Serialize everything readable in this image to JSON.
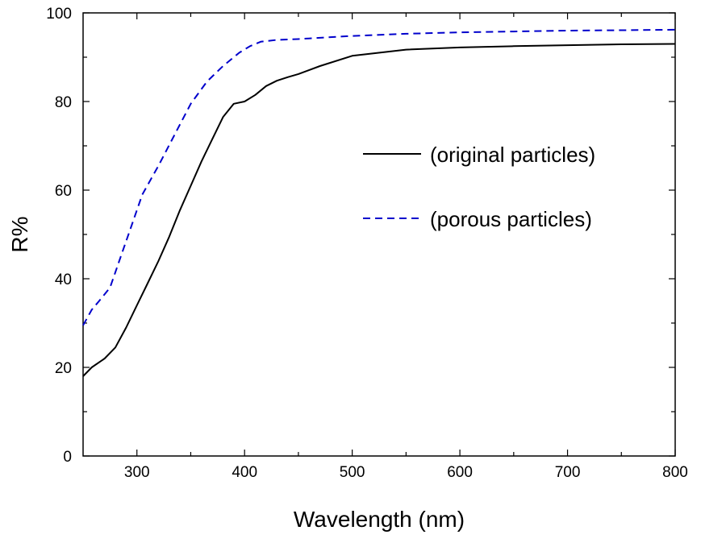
{
  "chart_data": {
    "type": "line",
    "xlabel": "Wavelength (nm)",
    "ylabel": "R%",
    "xlim": [
      250,
      800
    ],
    "ylim": [
      0,
      100
    ],
    "xticks": [
      300,
      400,
      500,
      600,
      700,
      800
    ],
    "xtick_labels": [
      "300",
      "400",
      "500",
      "600",
      "700",
      "800"
    ],
    "yticks": [
      0,
      20,
      40,
      60,
      80,
      100
    ],
    "ytick_labels": [
      "0",
      "20",
      "40",
      "60",
      "80",
      "100"
    ],
    "grid": false,
    "legend_position": "center-right",
    "series": [
      {
        "name": "(original particles)",
        "color": "#000000",
        "dash": "solid",
        "x": [
          250,
          258,
          270,
          280,
          290,
          300,
          310,
          320,
          330,
          340,
          350,
          360,
          370,
          380,
          390,
          400,
          410,
          420,
          430,
          440,
          450,
          470,
          500,
          550,
          600,
          650,
          700,
          750,
          800
        ],
        "y": [
          18,
          20,
          22,
          24.5,
          29,
          34,
          39,
          44,
          49.5,
          55.5,
          61,
          66.5,
          71.5,
          76.5,
          79.5,
          80,
          81.5,
          83.5,
          84.7,
          85.5,
          86.2,
          88,
          90.3,
          91.7,
          92.2,
          92.5,
          92.7,
          92.9,
          93
        ]
      },
      {
        "name": "(porous particles)",
        "color": "#0000cc",
        "dash": "dashed",
        "x": [
          250,
          258,
          265,
          275,
          285,
          295,
          305,
          320,
          335,
          350,
          365,
          380,
          395,
          405,
          415,
          430,
          450,
          500,
          550,
          600,
          650,
          700,
          750,
          800
        ],
        "y": [
          29.5,
          33,
          35,
          38,
          45,
          52,
          59,
          65.5,
          72.5,
          79.5,
          84.5,
          88,
          91,
          92.5,
          93.5,
          93.9,
          94.1,
          94.8,
          95.3,
          95.6,
          95.8,
          96,
          96.1,
          96.2
        ]
      }
    ]
  }
}
